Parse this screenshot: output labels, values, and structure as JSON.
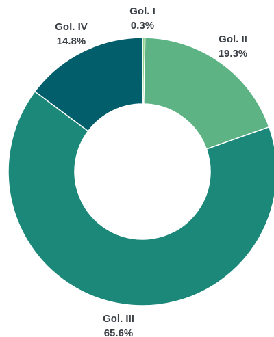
{
  "chart_data": {
    "type": "pie",
    "variant": "donut",
    "title": "",
    "legend": "none",
    "slices": [
      {
        "label": "Gol. I",
        "value": 0.3,
        "value_label": "0.3%",
        "color": "#8fd08a"
      },
      {
        "label": "Gol. II",
        "value": 19.3,
        "value_label": "19.3%",
        "color": "#5db384"
      },
      {
        "label": "Gol. III",
        "value": 65.6,
        "value_label": "65.6%",
        "color": "#1b887a"
      },
      {
        "label": "Gol. IV",
        "value": 14.8,
        "value_label": "14.8%",
        "color": "#035e6b"
      }
    ]
  }
}
